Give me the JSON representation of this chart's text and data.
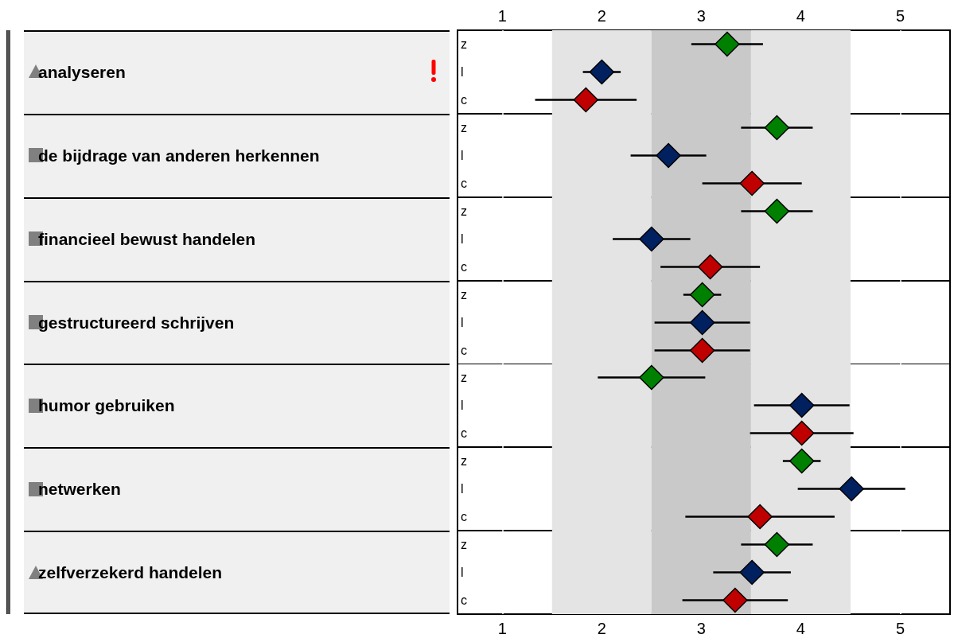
{
  "chart_data": [
    {
      "type": "scatter",
      "orientation": "horizontal",
      "marker": "diamond",
      "grid": "x",
      "ylabel": "analyseren",
      "categories": [
        "z",
        "l",
        "c"
      ],
      "values": [
        3.26,
        2.0,
        1.84
      ],
      "colors": [
        "#008000",
        "#002060",
        "#c00000"
      ],
      "errors": [
        0.36,
        0.19,
        0.51
      ],
      "bands": [
        {
          "axis": "x",
          "from": 1.5,
          "to": 2.5,
          "color": "#e4e4e4"
        },
        {
          "axis": "x",
          "from": 2.5,
          "to": 3.5,
          "color": "#c9c9c9"
        },
        {
          "axis": "x",
          "from": 3.5,
          "to": 4.5,
          "color": "#e4e4e4"
        }
      ],
      "xlim": [
        0.55,
        5.5
      ],
      "xticks": [
        1,
        2,
        3,
        4,
        5
      ],
      "x2lim": [
        0.55,
        5.5
      ],
      "x2ticks": [
        1,
        2,
        3,
        4,
        5
      ],
      "tick_labels": "y"
    },
    {
      "type": "scatter",
      "orientation": "horizontal",
      "marker": "diamond",
      "grid": "x",
      "ylabel": "de bijdrage van anderen herkennen",
      "categories": [
        "z",
        "l",
        "c"
      ],
      "values": [
        3.76,
        2.67,
        3.51
      ],
      "colors": [
        "#008000",
        "#002060",
        "#c00000"
      ],
      "errors": [
        0.36,
        0.38,
        0.5
      ],
      "bands": [
        {
          "axis": "x",
          "from": 1.5,
          "to": 2.5,
          "color": "#e4e4e4"
        },
        {
          "axis": "x",
          "from": 2.5,
          "to": 3.5,
          "color": "#c9c9c9"
        },
        {
          "axis": "x",
          "from": 3.5,
          "to": 4.5,
          "color": "#e4e4e4"
        }
      ],
      "xlim": [
        0.55,
        5.5
      ],
      "xticks": [
        1,
        2,
        3,
        4,
        5
      ],
      "tick_labels": "y"
    },
    {
      "type": "scatter",
      "orientation": "horizontal",
      "marker": "diamond",
      "grid": "x",
      "ylabel": "financieel bewust handelen",
      "categories": [
        "z",
        "l",
        "c"
      ],
      "values": [
        3.76,
        2.5,
        3.09
      ],
      "colors": [
        "#008000",
        "#002060",
        "#c00000"
      ],
      "errors": [
        0.36,
        0.39,
        0.5
      ],
      "bands": [
        {
          "axis": "x",
          "from": 1.5,
          "to": 2.5,
          "color": "#e4e4e4"
        },
        {
          "axis": "x",
          "from": 2.5,
          "to": 3.5,
          "color": "#c9c9c9"
        },
        {
          "axis": "x",
          "from": 3.5,
          "to": 4.5,
          "color": "#e4e4e4"
        }
      ],
      "xlim": [
        0.55,
        5.5
      ],
      "xticks": [
        1,
        2,
        3,
        4,
        5
      ],
      "tick_labels": "y"
    },
    {
      "type": "scatter",
      "orientation": "horizontal",
      "marker": "diamond",
      "grid": "x",
      "ylabel": "gestructureerd schrijven",
      "categories": [
        "z",
        "l",
        "c"
      ],
      "values": [
        3.01,
        3.01,
        3.01
      ],
      "colors": [
        "#008000",
        "#002060",
        "#c00000"
      ],
      "errors": [
        0.19,
        0.48,
        0.48
      ],
      "bands": [
        {
          "axis": "x",
          "from": 1.5,
          "to": 2.5,
          "color": "#e4e4e4"
        },
        {
          "axis": "x",
          "from": 2.5,
          "to": 3.5,
          "color": "#c9c9c9"
        },
        {
          "axis": "x",
          "from": 3.5,
          "to": 4.5,
          "color": "#e4e4e4"
        }
      ],
      "xlim": [
        0.55,
        5.5
      ],
      "xticks": [
        1,
        2,
        3,
        4,
        5
      ],
      "tick_labels": "y"
    },
    {
      "type": "scatter",
      "orientation": "horizontal",
      "marker": "diamond",
      "grid": "x",
      "ylabel": "humor gebruiken",
      "categories": [
        "z",
        "l",
        "c"
      ],
      "values": [
        2.5,
        4.01,
        4.01
      ],
      "colors": [
        "#008000",
        "#002060",
        "#c00000"
      ],
      "errors": [
        0.54,
        0.48,
        0.52
      ],
      "bands": [
        {
          "axis": "x",
          "from": 1.5,
          "to": 2.5,
          "color": "#e4e4e4"
        },
        {
          "axis": "x",
          "from": 2.5,
          "to": 3.5,
          "color": "#c9c9c9"
        },
        {
          "axis": "x",
          "from": 3.5,
          "to": 4.5,
          "color": "#e4e4e4"
        }
      ],
      "xlim": [
        0.55,
        5.5
      ],
      "xticks": [
        1,
        2,
        3,
        4,
        5
      ],
      "tick_labels": "y"
    },
    {
      "type": "scatter",
      "orientation": "horizontal",
      "marker": "diamond",
      "grid": "x",
      "ylabel": "netwerken",
      "categories": [
        "z",
        "l",
        "c"
      ],
      "values": [
        4.01,
        4.51,
        3.59
      ],
      "colors": [
        "#008000",
        "#002060",
        "#c00000"
      ],
      "errors": [
        0.19,
        0.54,
        0.75
      ],
      "bands": [
        {
          "axis": "x",
          "from": 1.5,
          "to": 2.5,
          "color": "#e4e4e4"
        },
        {
          "axis": "x",
          "from": 2.5,
          "to": 3.5,
          "color": "#c9c9c9"
        },
        {
          "axis": "x",
          "from": 3.5,
          "to": 4.5,
          "color": "#e4e4e4"
        }
      ],
      "xlim": [
        0.55,
        5.5
      ],
      "xticks": [
        1,
        2,
        3,
        4,
        5
      ],
      "tick_labels": "y"
    },
    {
      "type": "scatter",
      "orientation": "horizontal",
      "marker": "diamond",
      "grid": "x",
      "ylabel": "zelfverzekerd handelen",
      "categories": [
        "z",
        "l",
        "c"
      ],
      "values": [
        3.76,
        3.51,
        3.34
      ],
      "colors": [
        "#008000",
        "#002060",
        "#c00000"
      ],
      "errors": [
        0.36,
        0.39,
        0.53
      ],
      "bands": [
        {
          "axis": "x",
          "from": 1.5,
          "to": 2.5,
          "color": "#e4e4e4"
        },
        {
          "axis": "x",
          "from": 2.5,
          "to": 3.5,
          "color": "#c9c9c9"
        },
        {
          "axis": "x",
          "from": 3.5,
          "to": 4.5,
          "color": "#e4e4e4"
        }
      ],
      "xlim": [
        0.55,
        5.5
      ],
      "xticks": [
        1,
        2,
        3,
        4,
        5
      ]
    }
  ]
}
